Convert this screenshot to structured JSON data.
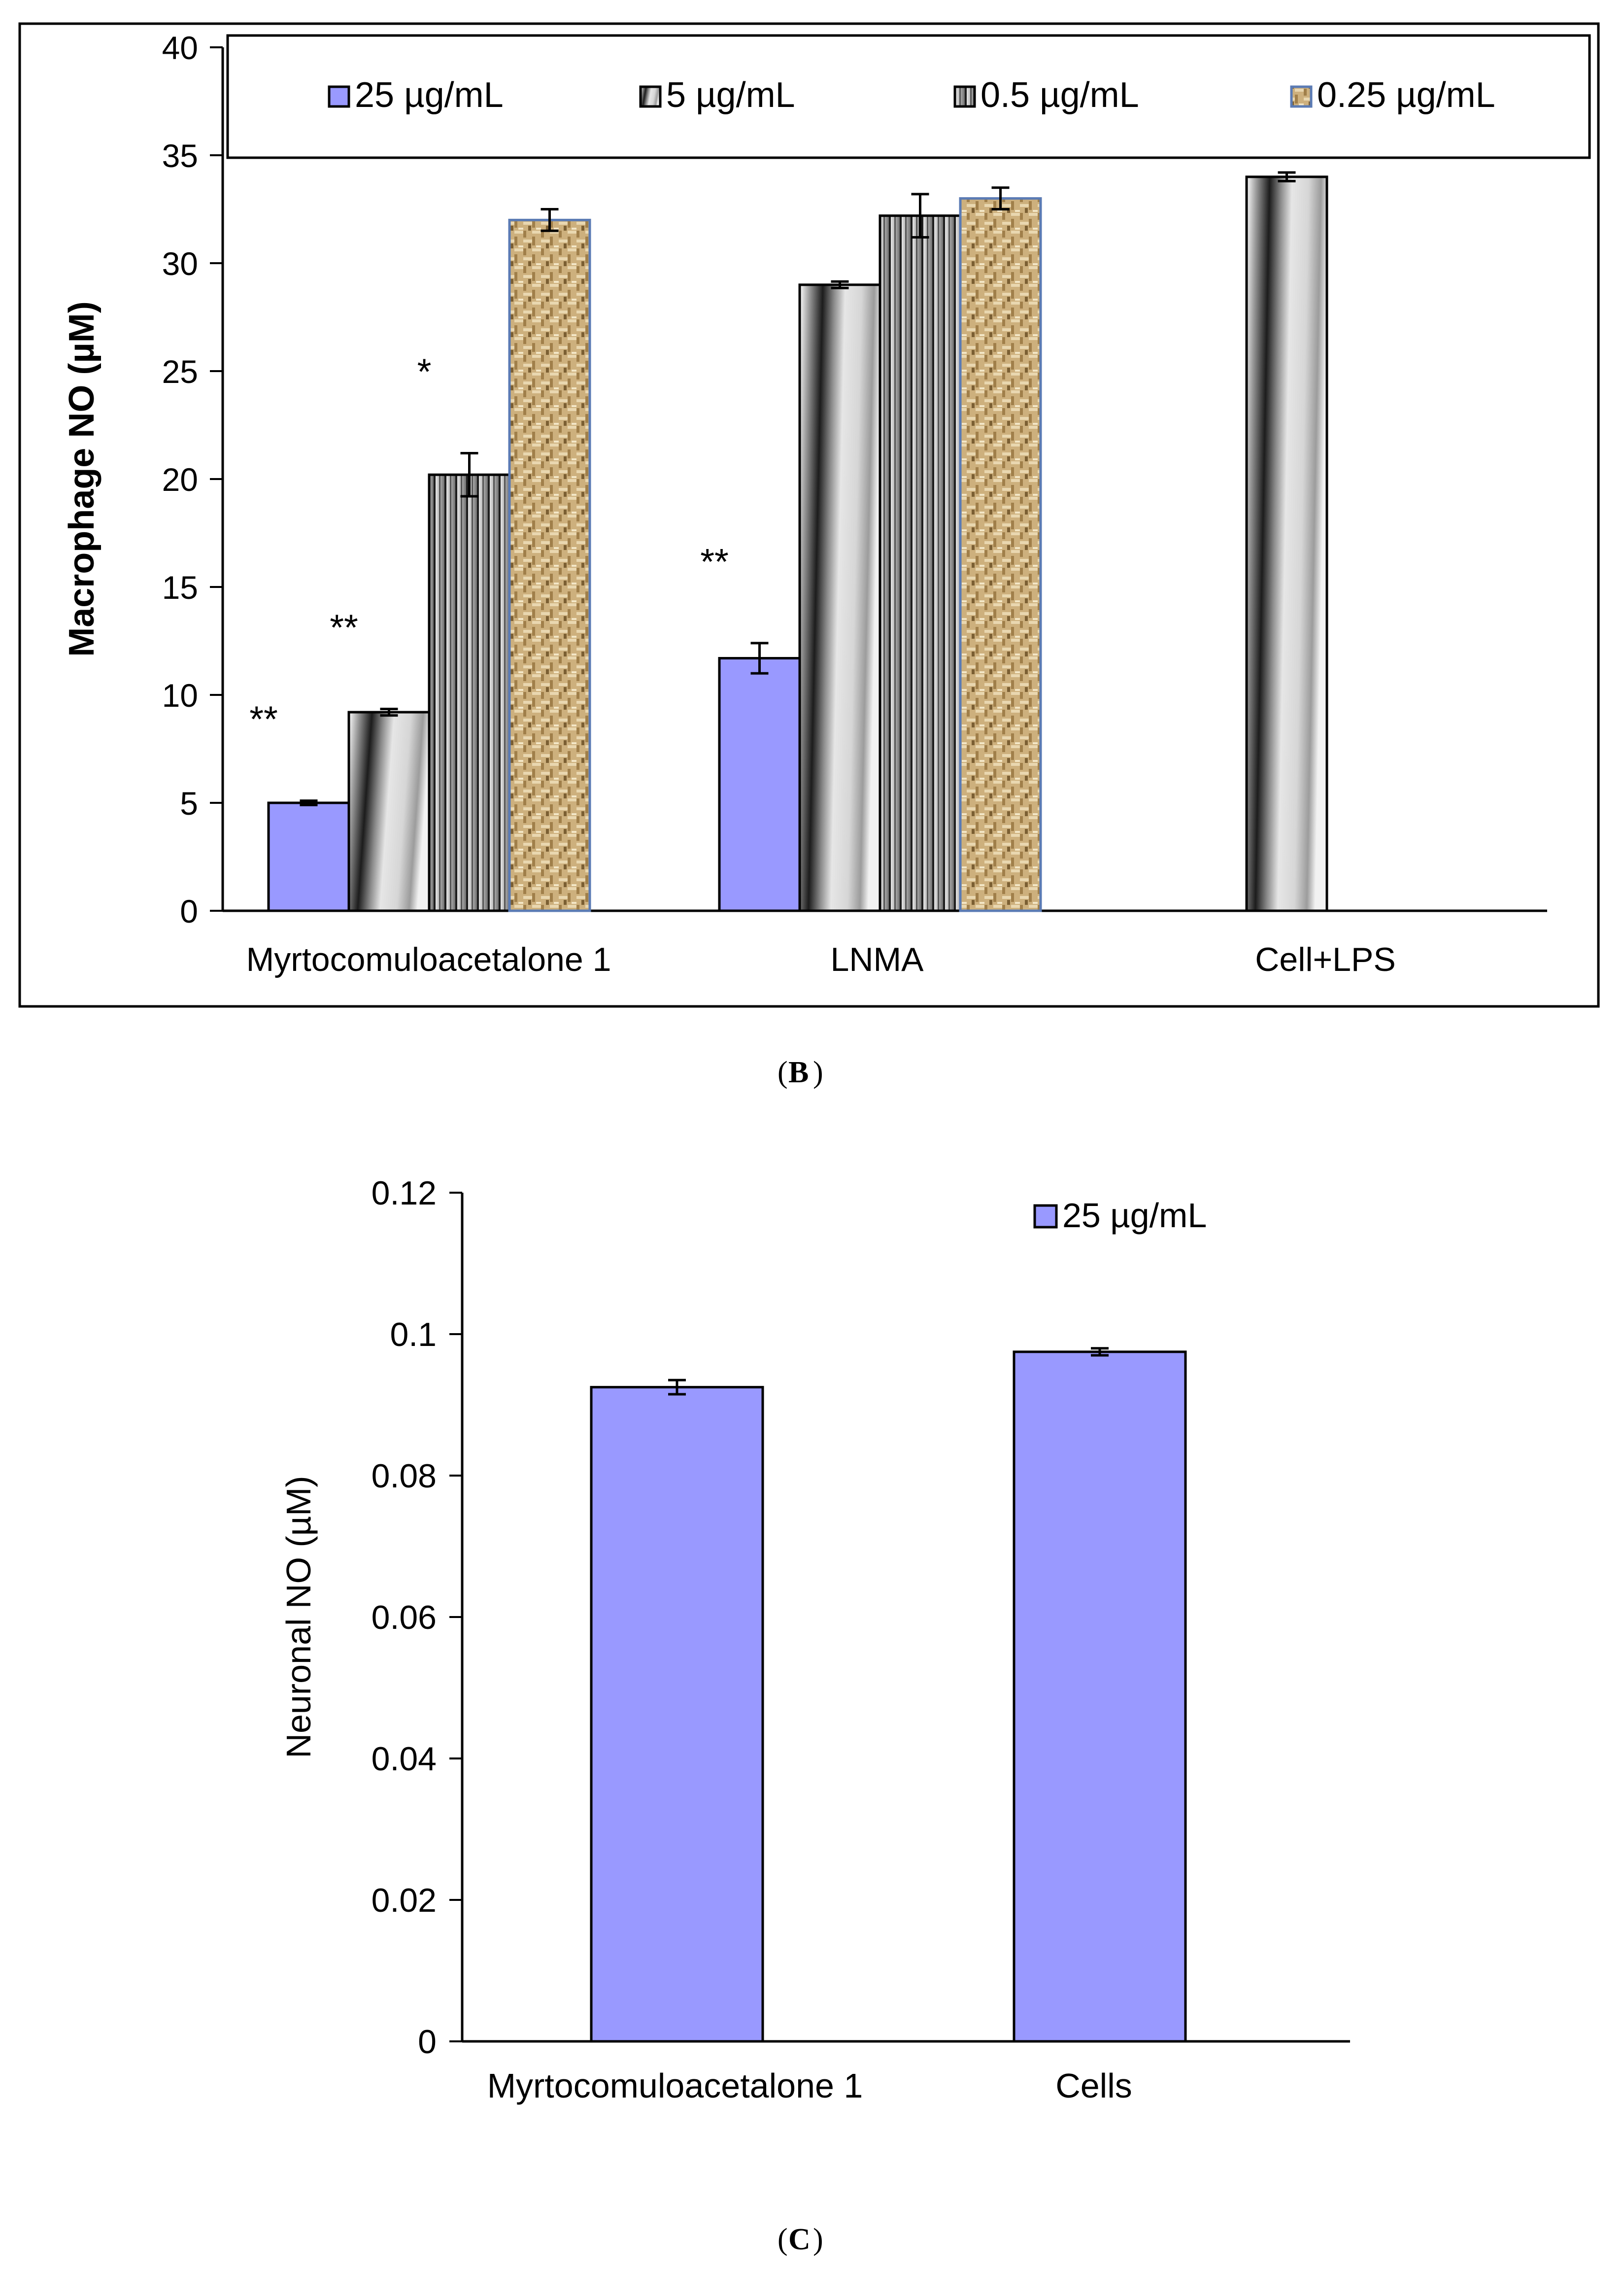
{
  "colors": {
    "s25": "#9999FF",
    "s5_dark": "#1a1a1a",
    "s5_light": "#e4e4e4",
    "s05_dark": "#2a2a2a",
    "s05_light": "#f0f0f0",
    "s025_base": "#c9a877",
    "s025_dark": "#8a6a3a",
    "axis": "#000000",
    "panel_border": "#000000",
    "cap_blue": "#5b7bb4"
  },
  "panels": {
    "B": {
      "caption": "B"
    },
    "C": {
      "caption": "C"
    }
  },
  "chart_data": [
    {
      "id": "B",
      "type": "bar",
      "title": "",
      "xlabel": "",
      "ylabel": "Macrophage NO (µM)",
      "ylim": [
        0,
        40
      ],
      "yticks": [
        0,
        5,
        10,
        15,
        20,
        25,
        30,
        35,
        40
      ],
      "categories": [
        "Myrtocomuloacetalone 1",
        "LNMA",
        "Cell+LPS"
      ],
      "legend_position": "top",
      "series": [
        {
          "name": "25 µg/mL",
          "pattern": "solid-blue",
          "values": [
            5.0,
            11.7,
            null
          ],
          "errors": [
            0.1,
            0.7,
            null
          ],
          "annotations": [
            "**",
            "**",
            ""
          ]
        },
        {
          "name": "5 µg/mL",
          "pattern": "diagonal-gradient",
          "values": [
            9.2,
            29.0,
            34.0
          ],
          "errors": [
            0.15,
            0.15,
            0.2
          ],
          "annotations": [
            "**",
            "",
            ""
          ]
        },
        {
          "name": "0.5 µg/mL",
          "pattern": "vertical-stripes",
          "values": [
            20.2,
            32.2,
            null
          ],
          "errors": [
            1.0,
            1.0,
            null
          ],
          "annotations": [
            "*",
            "",
            ""
          ]
        },
        {
          "name": "0.25 µg/mL",
          "pattern": "burlap-texture",
          "values": [
            32.0,
            33.0,
            null
          ],
          "errors": [
            0.5,
            0.5,
            null
          ],
          "annotations": [
            "",
            "",
            ""
          ]
        }
      ]
    },
    {
      "id": "C",
      "type": "bar",
      "title": "",
      "xlabel": "",
      "ylabel": "Neuronal NO (µM)",
      "ylim": [
        0,
        0.12
      ],
      "yticks": [
        "0",
        "0.02",
        "0.04",
        "0.06",
        "0.08",
        "0.1",
        "0.12"
      ],
      "categories": [
        "Myrtocomuloacetalone 1",
        "Cells"
      ],
      "legend_position": "top-right",
      "series": [
        {
          "name": "25 µg/mL",
          "pattern": "solid-blue",
          "values": [
            0.0925,
            0.0975
          ],
          "errors": [
            0.001,
            0.0005
          ]
        }
      ]
    }
  ]
}
